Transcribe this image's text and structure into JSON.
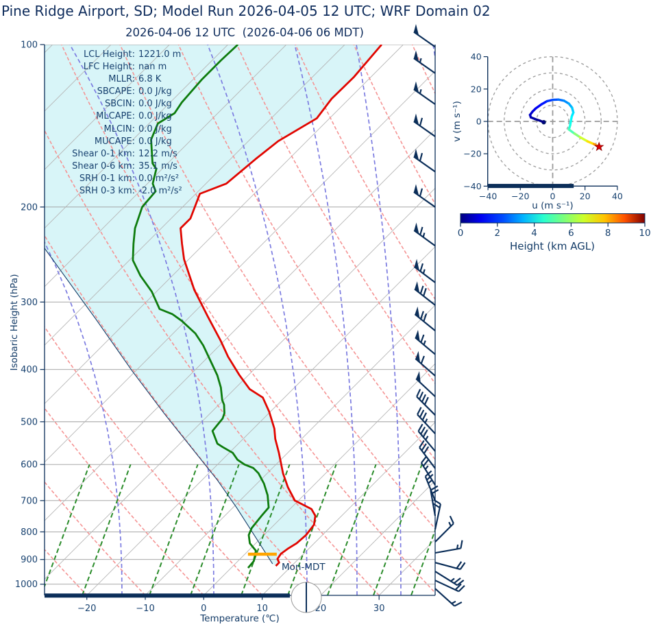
{
  "header": {
    "title": "Pine Ridge Airport, SD; Model Run 2026-04-05 12 UTC; WRF Domain 02",
    "subtitle": "2026-04-06 12 UTC  (2026-04-06 06 MDT)"
  },
  "stats": [
    {
      "label": "LCL Height:",
      "value": "1221.0 m"
    },
    {
      "label": "LFC Height:",
      "value": "nan m"
    },
    {
      "label": "MLLR:",
      "value": "6.8 K"
    },
    {
      "label": "SBCAPE:",
      "value": "0.0 J/kg"
    },
    {
      "label": "SBCIN:",
      "value": "0.0 J/kg"
    },
    {
      "label": "MLCAPE:",
      "value": "0.0 J/kg"
    },
    {
      "label": "MLCIN:",
      "value": "0.0 J/kg"
    },
    {
      "label": "MUCAPE:",
      "value": "0.0 J/kg"
    },
    {
      "label": "Shear 0-1 km:",
      "value": "12.2 m/s"
    },
    {
      "label": "Shear 0-6 km:",
      "value": "35.1 m/s"
    },
    {
      "label": "SRH 0-1 km:",
      "value": "0.0 m²/s²"
    },
    {
      "label": "SRH 0-3 km:",
      "value": "-2.0 m²/s²"
    }
  ],
  "skewt": {
    "ylabel": "Isobaric Height (hPa)",
    "xlabel": "Temperature (℃)",
    "pressure_ticks": [
      100,
      200,
      300,
      400,
      500,
      600,
      700,
      800,
      900,
      1000
    ],
    "temp_ticks": [
      -20,
      -10,
      0,
      10,
      20,
      30
    ],
    "surface_time_label": "Mon-MDT"
  },
  "hodograph": {
    "xlabel": "u (m s⁻¹)",
    "ylabel": "v (m s⁻¹)",
    "ticks": [
      -40,
      -20,
      0,
      20,
      40
    ],
    "ring_radii": [
      10,
      20,
      30,
      40
    ]
  },
  "colorbar": {
    "label": "Height (km AGL)",
    "ticks": [
      0,
      2,
      4,
      6,
      8,
      10
    ],
    "colormap": "jet"
  },
  "colors": {
    "navy": "#0b2e59",
    "text": "#17416f",
    "temperature_line": "#e10600",
    "dewpoint_line": "#0e7c0e",
    "parcel_line": "#123a66",
    "cin_shade": "rgba(178,235,242,0.5)",
    "lcl_marker": "#ffa500",
    "isobar": "#9b9b9b",
    "isotherm": "#b5b5b5",
    "dry_adiabat": "#f59393",
    "moist_adiabat": "#7b7be0",
    "mixing_line": "#2a8c2a",
    "hodo_ring": "#9a9a9a",
    "star": "#dd0000"
  },
  "chart_data": {
    "type": "skewt+hodograph",
    "pressure_range_hPa": [
      100,
      1050
    ],
    "temp_axis_range_C": [
      -30,
      40
    ],
    "temperature_series_T_p": [
      [
        -63.7,
        100
      ],
      [
        -62.9,
        115
      ],
      [
        -63.0,
        126
      ],
      [
        -62.2,
        137
      ],
      [
        -64.9,
        151
      ],
      [
        -65.7,
        163
      ],
      [
        -66.5,
        181
      ],
      [
        -69.3,
        189
      ],
      [
        -66.7,
        210
      ],
      [
        -66.7,
        219
      ],
      [
        -63.8,
        234
      ],
      [
        -60.8,
        250
      ],
      [
        -53.8,
        285
      ],
      [
        -46.8,
        320
      ],
      [
        -40.6,
        354
      ],
      [
        -36.6,
        379
      ],
      [
        -31.5,
        410
      ],
      [
        -27.4,
        435
      ],
      [
        -23.7,
        451
      ],
      [
        -20.2,
        479
      ],
      [
        -16.4,
        515
      ],
      [
        -14.5,
        538
      ],
      [
        -11.5,
        571
      ],
      [
        -7.3,
        623
      ],
      [
        -4.1,
        661
      ],
      [
        -0.6,
        700
      ],
      [
        1.6,
        713
      ],
      [
        3.7,
        726
      ],
      [
        5.5,
        747
      ],
      [
        6.8,
        776
      ],
      [
        7.2,
        811
      ],
      [
        7.0,
        840
      ],
      [
        6.4,
        860
      ],
      [
        6.1,
        878
      ],
      [
        6.4,
        898
      ],
      [
        7.3,
        912
      ],
      [
        7.3,
        925
      ]
    ],
    "dewpoint_series_T_p": [
      [
        -88.3,
        100
      ],
      [
        -88.5,
        107
      ],
      [
        -88.5,
        116
      ],
      [
        -88.0,
        128
      ],
      [
        -87.4,
        134
      ],
      [
        -88.5,
        140
      ],
      [
        -86.9,
        150
      ],
      [
        -82.6,
        166
      ],
      [
        -81.0,
        170
      ],
      [
        -79.1,
        181
      ],
      [
        -77.3,
        187
      ],
      [
        -76.9,
        200
      ],
      [
        -74.5,
        219
      ],
      [
        -72.1,
        234
      ],
      [
        -69.4,
        251
      ],
      [
        -65.5,
        268
      ],
      [
        -60.8,
        287
      ],
      [
        -56.5,
        309
      ],
      [
        -53.4,
        316
      ],
      [
        -50.7,
        325
      ],
      [
        -46.2,
        343
      ],
      [
        -42.8,
        361
      ],
      [
        -38.7,
        387
      ],
      [
        -35.3,
        410
      ],
      [
        -32.6,
        432
      ],
      [
        -30.2,
        456
      ],
      [
        -29.1,
        465
      ],
      [
        -27.6,
        482
      ],
      [
        -27.0,
        493
      ],
      [
        -26.6,
        520
      ],
      [
        -23.6,
        549
      ],
      [
        -22.1,
        557
      ],
      [
        -19.4,
        571
      ],
      [
        -17.4,
        588
      ],
      [
        -15.4,
        600
      ],
      [
        -13.3,
        609
      ],
      [
        -11.5,
        623
      ],
      [
        -8.8,
        651
      ],
      [
        -6.2,
        684
      ],
      [
        -3.9,
        721
      ],
      [
        -3.7,
        747
      ],
      [
        -3.3,
        787
      ],
      [
        -2.6,
        811
      ],
      [
        -1.0,
        840
      ],
      [
        1.3,
        867
      ],
      [
        2.7,
        906
      ],
      [
        2.9,
        933
      ]
    ],
    "parcel_series_T_p": [
      [
        6.4,
        917
      ],
      [
        -9.4,
        721
      ],
      [
        -17.4,
        641
      ],
      [
        -37.8,
        483
      ],
      [
        -50.7,
        402
      ],
      [
        -65.6,
        323
      ],
      [
        -86.7,
        238
      ]
    ],
    "lcl_marker": {
      "pressure_hPa": 880,
      "temperature_C": 3.0
    },
    "wind_barbs_p_angle_kt": [
      [
        101,
        145,
        50
      ],
      [
        113,
        145,
        55
      ],
      [
        129,
        145,
        55
      ],
      [
        148,
        145,
        60
      ],
      [
        172,
        145,
        60
      ],
      [
        200,
        145,
        60
      ],
      [
        236,
        144,
        65
      ],
      [
        276,
        143,
        65
      ],
      [
        304,
        142,
        70
      ],
      [
        339,
        141,
        70
      ],
      [
        375,
        140,
        65
      ],
      [
        411,
        139,
        60
      ],
      [
        449,
        137,
        50
      ],
      [
        486,
        135,
        40
      ],
      [
        526,
        133,
        35
      ],
      [
        567,
        130,
        35
      ],
      [
        610,
        127,
        30
      ],
      [
        655,
        122,
        25
      ],
      [
        700,
        112,
        25
      ],
      [
        747,
        100,
        20
      ],
      [
        792,
        78,
        20
      ],
      [
        835,
        45,
        15
      ],
      [
        875,
        10,
        15
      ],
      [
        912,
        -15,
        20
      ],
      [
        947,
        -32,
        25
      ],
      [
        984,
        -25,
        20
      ],
      [
        1019,
        -42,
        15
      ]
    ],
    "hodograph_trace_u_v_hkm": [
      [
        -5.5,
        -0.5,
        0.0
      ],
      [
        -8,
        0.5,
        0.1
      ],
      [
        -11,
        1.5,
        0.25
      ],
      [
        -13.5,
        2.5,
        0.4
      ],
      [
        -14,
        4,
        0.6
      ],
      [
        -12.5,
        6,
        0.8
      ],
      [
        -10.5,
        8,
        1.0
      ],
      [
        -7,
        10.5,
        1.3
      ],
      [
        -3.5,
        12.5,
        1.6
      ],
      [
        0,
        13.3,
        1.9
      ],
      [
        3.5,
        13.5,
        2.2
      ],
      [
        7,
        12.8,
        2.5
      ],
      [
        10,
        11,
        2.8
      ],
      [
        12,
        8.5,
        3.1
      ],
      [
        12.8,
        5.5,
        3.4
      ],
      [
        11.8,
        3,
        3.6
      ],
      [
        11.3,
        0.5,
        3.8
      ],
      [
        10.8,
        -2.5,
        4.0
      ],
      [
        10,
        -5,
        4.2
      ],
      [
        13.5,
        -7.5,
        4.8
      ],
      [
        17,
        -9.8,
        5.4
      ],
      [
        21.5,
        -12.3,
        6.2
      ],
      [
        25.5,
        -14,
        6.9
      ],
      [
        27.8,
        -15.2,
        7.6
      ],
      [
        28.7,
        -15.7,
        8.0
      ]
    ],
    "hodograph_end_marker_u_v": [
      28.7,
      -15.7
    ],
    "hodograph_surface_bar_u": [
      -40,
      13
    ],
    "colorbar_range_km": [
      0,
      10
    ]
  }
}
